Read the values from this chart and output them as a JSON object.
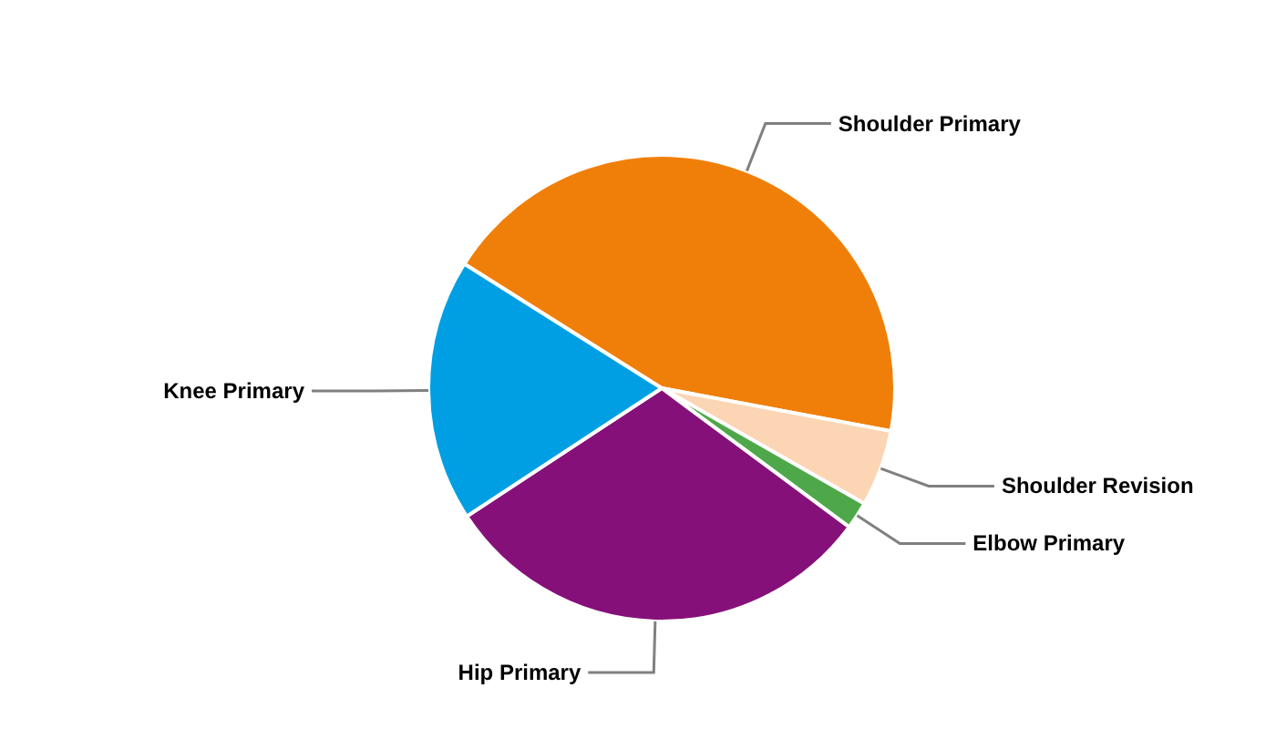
{
  "chart_data": {
    "type": "pie",
    "categories": [
      "Shoulder Primary",
      "Shoulder Revision",
      "Elbow Primary",
      "Hip Primary",
      "Knee Primary"
    ],
    "values": [
      44,
      5.3,
      1.9,
      30.6,
      18.2
    ],
    "colors": [
      "#f07f09",
      "#fcd5b4",
      "#4ea84a",
      "#861079",
      "#009fe3"
    ],
    "legend": false
  }
}
